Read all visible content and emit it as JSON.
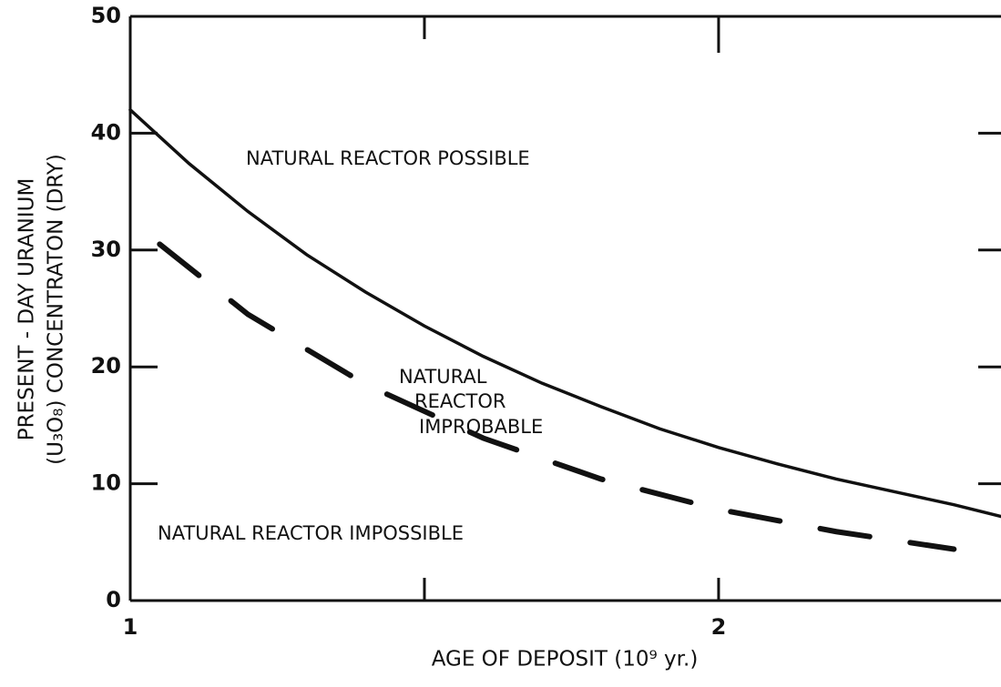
{
  "chart_data": {
    "type": "line",
    "xlabel": "AGE OF DEPOSIT (10⁹ yr.)",
    "ylabel": [
      "PRESENT - DAY URANIUM",
      "(U₃O₈) CONCENTRATON (DRY)"
    ],
    "xlim": [
      1,
      2.48
    ],
    "ylim": [
      0,
      50
    ],
    "xticks": [
      1,
      2
    ],
    "xminor_ticks": [
      1.5
    ],
    "yticks": [
      0,
      10,
      20,
      30,
      40,
      50
    ],
    "annotations": [
      "NATURAL REACTOR POSSIBLE",
      [
        "NATURAL",
        "REACTOR",
        "IMPROBABLE"
      ],
      "NATURAL REACTOR IMPOSSIBLE"
    ],
    "series": [
      {
        "color": "#111111",
        "dashed": false,
        "x": [
          1.0,
          1.1,
          1.2,
          1.3,
          1.4,
          1.5,
          1.6,
          1.7,
          1.8,
          1.9,
          2.0,
          2.1,
          2.2,
          2.3,
          2.4,
          2.48
        ],
        "values": [
          42,
          37.4,
          33.3,
          29.6,
          26.4,
          23.5,
          20.9,
          18.6,
          16.6,
          14.7,
          13.1,
          11.7,
          10.4,
          9.3,
          8.2,
          7.2
        ]
      },
      {
        "color": "#111111",
        "dashed": true,
        "x": [
          1.05,
          1.2,
          1.4,
          1.6,
          1.8,
          2.0,
          2.2,
          2.4
        ],
        "values": [
          30.5,
          24.5,
          18.5,
          13.9,
          10.4,
          7.8,
          5.9,
          4.4
        ]
      }
    ]
  }
}
